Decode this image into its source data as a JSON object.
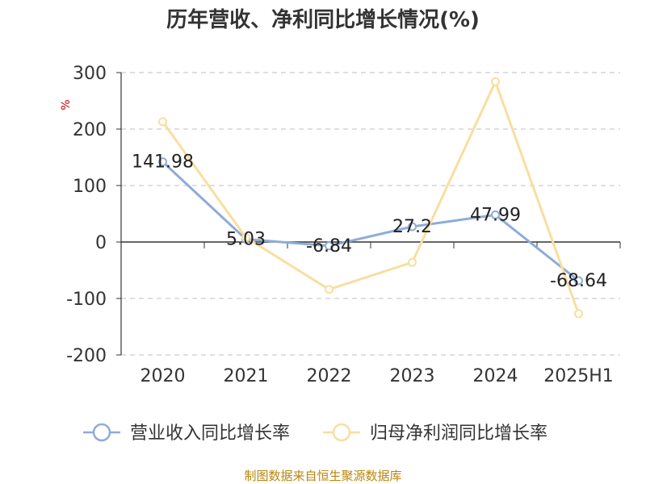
{
  "chart_data": {
    "type": "line",
    "title": "历年营收、净利同比增长情况(%)",
    "ylabel": "%",
    "categories": [
      "2020",
      "2021",
      "2022",
      "2023",
      "2024",
      "2025H1"
    ],
    "ylim": [
      -200,
      300
    ],
    "yticks": [
      300,
      200,
      100,
      0,
      -100,
      -200
    ],
    "grid": true,
    "legend_position": "bottom",
    "series": [
      {
        "name": "营业收入同比增长率",
        "values": [
          141.98,
          5.03,
          -6.84,
          27.2,
          47.99,
          -68.64
        ],
        "labels": [
          "141.98",
          "5.03",
          "-6.84",
          "27.2",
          "47.99",
          "-68.64"
        ],
        "color": "#8eacd8"
      },
      {
        "name": "归母净利润同比增长率",
        "values": [
          213,
          8,
          -84,
          -36,
          284,
          -127
        ],
        "color": "#f9dea0"
      }
    ],
    "source": "制图数据来自恒生聚源数据库"
  }
}
